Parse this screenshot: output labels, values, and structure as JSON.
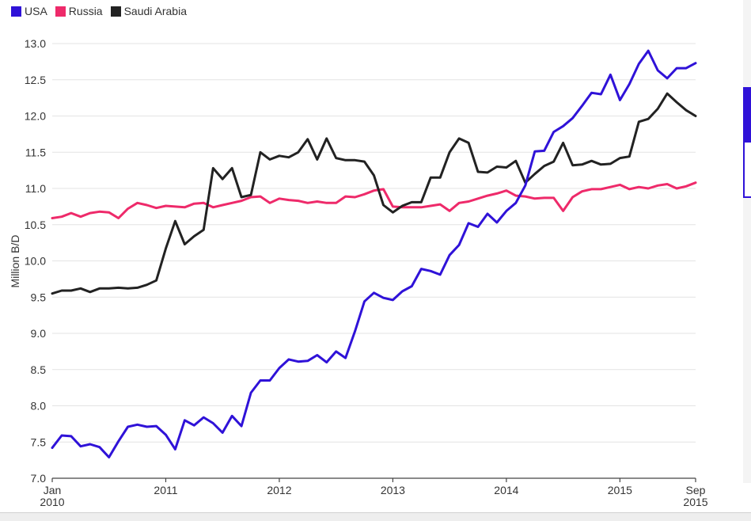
{
  "chart_data": {
    "type": "line",
    "title": "",
    "xlabel": "",
    "ylabel": "Million B/D",
    "ylim": [
      7.0,
      13.0
    ],
    "yticks": [
      "7.0",
      "7.5",
      "8.0",
      "8.5",
      "9.0",
      "9.5",
      "10.0",
      "10.5",
      "11.0",
      "11.5",
      "12.0",
      "12.5",
      "13.0"
    ],
    "xticks": [
      {
        "year": 2010,
        "month": 1,
        "line1": "Jan",
        "line2": "2010"
      },
      {
        "year": 2011,
        "month": 1,
        "line1": "2011",
        "line2": ""
      },
      {
        "year": 2012,
        "month": 1,
        "line1": "2012",
        "line2": ""
      },
      {
        "year": 2013,
        "month": 1,
        "line1": "2013",
        "line2": ""
      },
      {
        "year": 2014,
        "month": 1,
        "line1": "2014",
        "line2": ""
      },
      {
        "year": 2015,
        "month": 1,
        "line1": "2015",
        "line2": ""
      },
      {
        "year": 2015,
        "month": 9,
        "line1": "Sep",
        "line2": "2015"
      }
    ],
    "grid": true,
    "legend_position": "top-left",
    "start": "2010-01",
    "end": "2015-09",
    "series": [
      {
        "name": "USA",
        "color": "#2f12d8",
        "values": [
          7.42,
          7.59,
          7.58,
          7.44,
          7.47,
          7.43,
          7.29,
          7.51,
          7.71,
          7.74,
          7.71,
          7.72,
          7.6,
          7.4,
          7.8,
          7.73,
          7.84,
          7.76,
          7.63,
          7.86,
          7.72,
          8.18,
          8.35,
          8.35,
          8.52,
          8.64,
          8.61,
          8.62,
          8.7,
          8.6,
          8.75,
          8.66,
          9.03,
          9.44,
          9.56,
          9.49,
          9.46,
          9.58,
          9.65,
          9.89,
          9.86,
          9.81,
          10.08,
          10.22,
          10.52,
          10.47,
          10.65,
          10.53,
          10.69,
          10.8,
          11.04,
          11.51,
          11.52,
          11.78,
          11.86,
          11.97,
          12.14,
          12.32,
          12.3,
          12.57,
          12.22,
          12.44,
          12.72,
          12.9,
          12.63,
          12.52,
          12.66,
          12.66,
          12.73
        ]
      },
      {
        "name": "Russia",
        "color": "#ee2a6a",
        "values": [
          10.59,
          10.61,
          10.66,
          10.61,
          10.66,
          10.68,
          10.67,
          10.59,
          10.72,
          10.8,
          10.77,
          10.73,
          10.76,
          10.75,
          10.74,
          10.79,
          10.8,
          10.74,
          10.77,
          10.8,
          10.83,
          10.88,
          10.89,
          10.8,
          10.86,
          10.84,
          10.83,
          10.8,
          10.82,
          10.8,
          10.8,
          10.89,
          10.88,
          10.92,
          10.97,
          10.99,
          10.75,
          10.74,
          10.74,
          10.74,
          10.76,
          10.78,
          10.69,
          10.8,
          10.82,
          10.86,
          10.9,
          10.93,
          10.97,
          10.9,
          10.89,
          10.86,
          10.87,
          10.87,
          10.69,
          10.88,
          10.96,
          10.99,
          10.99,
          11.02,
          11.05,
          10.99,
          11.02,
          11.0,
          11.04,
          11.06,
          11.0,
          11.03,
          11.08
        ]
      },
      {
        "name": "Saudi Arabia",
        "color": "#222222",
        "values": [
          9.55,
          9.59,
          9.59,
          9.62,
          9.57,
          9.62,
          9.62,
          9.63,
          9.62,
          9.63,
          9.67,
          9.73,
          10.17,
          10.55,
          10.23,
          10.34,
          10.43,
          11.28,
          11.13,
          11.28,
          10.88,
          10.91,
          11.5,
          11.4,
          11.45,
          11.43,
          11.5,
          11.68,
          11.4,
          11.69,
          11.42,
          11.39,
          11.39,
          11.37,
          11.18,
          10.77,
          10.67,
          10.76,
          10.81,
          10.81,
          11.15,
          11.15,
          11.5,
          11.69,
          11.63,
          11.23,
          11.22,
          11.3,
          11.29,
          11.38,
          11.08,
          11.2,
          11.31,
          11.37,
          11.63,
          11.32,
          11.33,
          11.38,
          11.33,
          11.34,
          11.42,
          11.44,
          11.92,
          11.96,
          12.1,
          12.31,
          12.19,
          12.08,
          12.0
        ]
      }
    ]
  }
}
